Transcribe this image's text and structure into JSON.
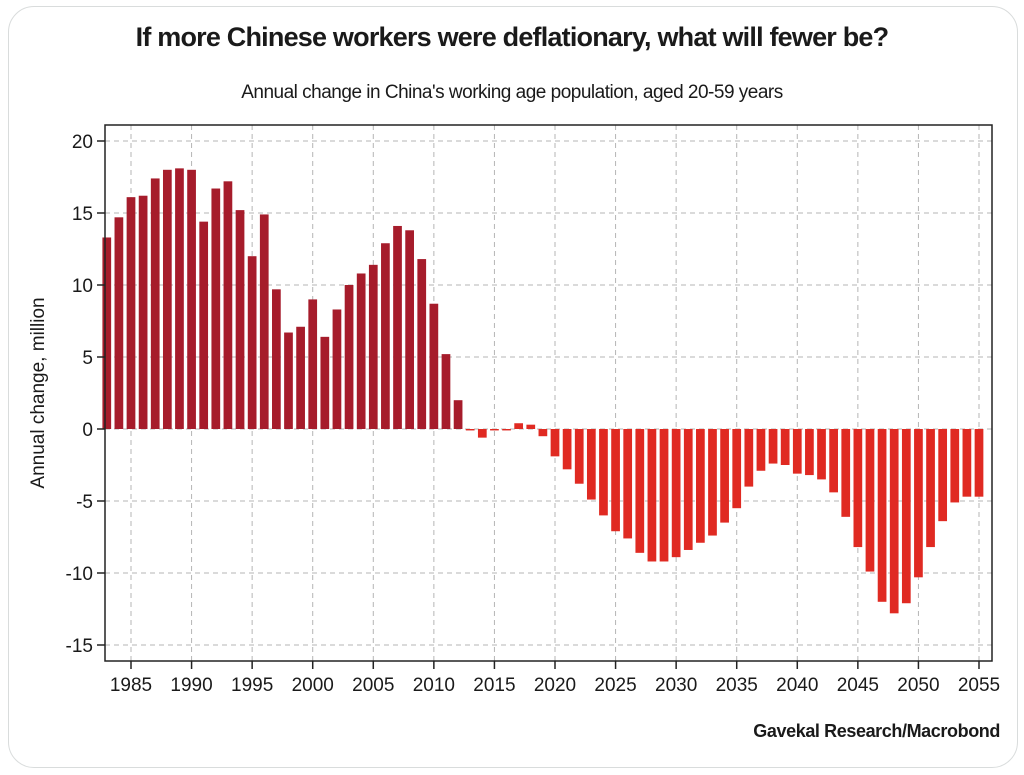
{
  "chart_data": {
    "type": "bar",
    "title": "If more Chinese workers were deflationary, what will fewer be?",
    "subtitle": "Annual change in China's working age population, aged 20-59 years",
    "xlabel": "",
    "ylabel": "Annual change, million",
    "source": "Gavekal Research/Macrobond",
    "ylim": [
      -16,
      21
    ],
    "xlim": [
      1982.5,
      2056
    ],
    "grid": true,
    "y_ticks": [
      "20",
      "15",
      "10",
      "5",
      "0",
      "-5",
      "-10",
      "-15"
    ],
    "y_tick_values": [
      20,
      15,
      10,
      5,
      0,
      -5,
      -10,
      -15
    ],
    "x_ticks": [
      "1985",
      "1990",
      "1995",
      "2000",
      "2005",
      "2010",
      "2015",
      "2020",
      "2025",
      "2030",
      "2035",
      "2040",
      "2045",
      "2050",
      "2055"
    ],
    "colors": {
      "historical": "#a61c2b",
      "projection": "#e02a22"
    },
    "projection_start_year": 2013,
    "years": [
      1983,
      1984,
      1985,
      1986,
      1987,
      1988,
      1989,
      1990,
      1991,
      1992,
      1993,
      1994,
      1995,
      1996,
      1997,
      1998,
      1999,
      2000,
      2001,
      2002,
      2003,
      2004,
      2005,
      2006,
      2007,
      2008,
      2009,
      2010,
      2011,
      2012,
      2013,
      2014,
      2015,
      2016,
      2017,
      2018,
      2019,
      2020,
      2021,
      2022,
      2023,
      2024,
      2025,
      2026,
      2027,
      2028,
      2029,
      2030,
      2031,
      2032,
      2033,
      2034,
      2035,
      2036,
      2037,
      2038,
      2039,
      2040,
      2041,
      2042,
      2043,
      2044,
      2045,
      2046,
      2047,
      2048,
      2049,
      2050,
      2051,
      2052,
      2053,
      2054,
      2055
    ],
    "values": [
      13.3,
      14.7,
      16.1,
      16.2,
      17.4,
      18.0,
      18.1,
      18.0,
      14.4,
      16.7,
      17.2,
      15.2,
      12.0,
      14.9,
      9.7,
      6.7,
      7.1,
      9.0,
      6.4,
      8.3,
      10.0,
      10.8,
      11.4,
      12.9,
      14.1,
      13.8,
      11.8,
      8.7,
      5.2,
      2.0,
      -0.1,
      -0.6,
      -0.1,
      -0.1,
      0.4,
      0.3,
      -0.5,
      -1.9,
      -2.8,
      -3.8,
      -4.9,
      -6.0,
      -7.1,
      -7.6,
      -8.6,
      -9.2,
      -9.2,
      -8.9,
      -8.4,
      -7.9,
      -7.4,
      -6.5,
      -5.5,
      -4.0,
      -2.9,
      -2.4,
      -2.5,
      -3.1,
      -3.2,
      -3.5,
      -4.4,
      -6.1,
      -8.2,
      -9.9,
      -12.0,
      -12.8,
      -12.1,
      -10.3,
      -8.2,
      -6.4,
      -5.1,
      -4.7,
      -4.7
    ]
  }
}
